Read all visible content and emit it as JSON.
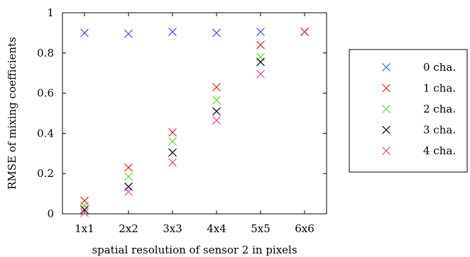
{
  "chart_data": {
    "type": "scatter",
    "xlabel": "spatial resolution of sensor 2 in pixels",
    "ylabel": "RMSE of mixing coefficients",
    "categories": [
      "1x1",
      "2x2",
      "3x3",
      "4x4",
      "5x5",
      "6x6"
    ],
    "ylim": [
      0,
      1
    ],
    "yticks": [
      "0",
      "0.2",
      "0.4",
      "0.6",
      "0.8",
      "1"
    ],
    "ytick_values": [
      0,
      0.2,
      0.4,
      0.6,
      0.8,
      1
    ],
    "grid": false,
    "legend_position": "right",
    "series": [
      {
        "name": "0 cha.",
        "color": "#3b5fc0",
        "values": [
          0.9,
          0.895,
          0.905,
          0.9,
          0.905,
          0.905
        ]
      },
      {
        "name": "1 cha.",
        "color": "#e0262b",
        "values": [
          0.065,
          0.23,
          0.405,
          0.63,
          0.84,
          0.905
        ]
      },
      {
        "name": "2 cha.",
        "color": "#6ccf3f",
        "values": [
          0.04,
          0.185,
          0.36,
          0.565,
          0.78,
          0.905
        ]
      },
      {
        "name": "3 cha.",
        "color": "#000000",
        "values": [
          0.02,
          0.135,
          0.305,
          0.51,
          0.755,
          0.905
        ]
      },
      {
        "name": "4 cha.",
        "color": "#e0479e",
        "values": [
          0.005,
          0.11,
          0.255,
          0.465,
          0.695,
          0.905
        ]
      }
    ]
  }
}
